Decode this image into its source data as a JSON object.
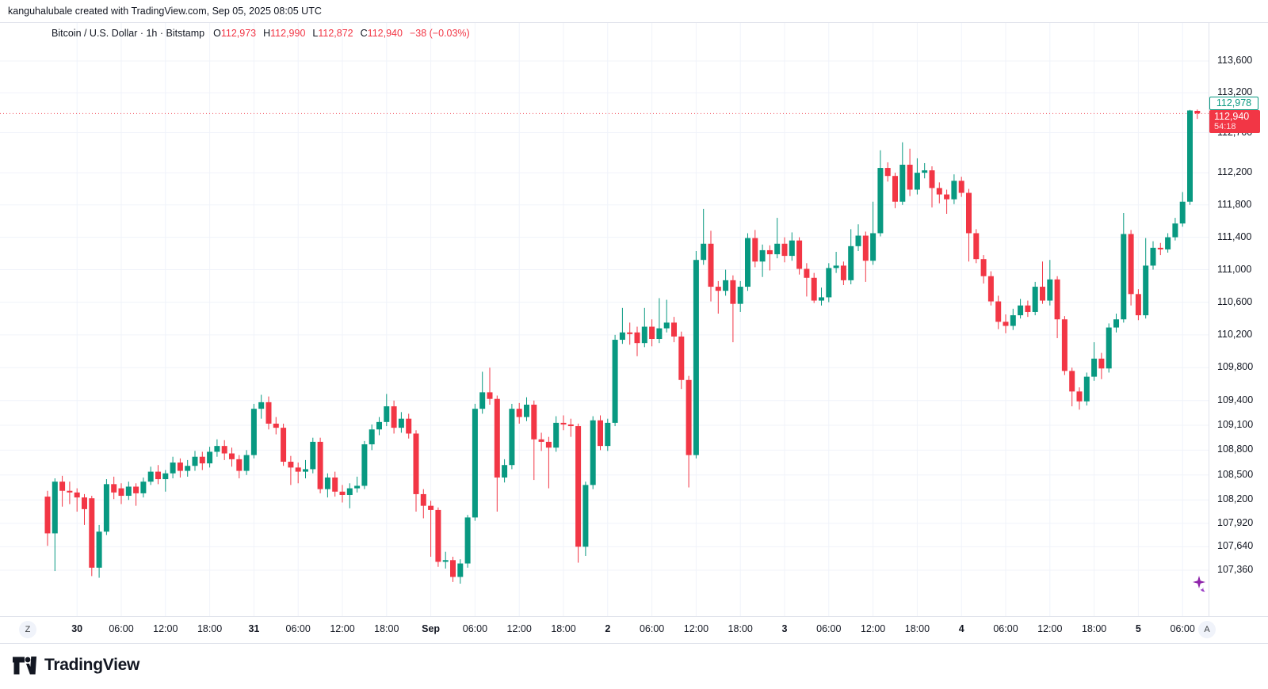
{
  "attribution": "kanguhalubale created with TradingView.com, Sep 05, 2025 08:05 UTC",
  "legend": {
    "title": "Bitcoin / U.S. Dollar · 1h · Bitstamp",
    "o_label": "O",
    "o_value": "112,973",
    "h_label": "H",
    "h_value": "112,990",
    "l_label": "L",
    "l_value": "112,872",
    "c_label": "C",
    "c_value": "112,940",
    "change": "−38 (−0.03%)"
  },
  "currency_button": "USD",
  "price_labels": {
    "counter": "112,978",
    "last_price": "112,940",
    "countdown": "54:18"
  },
  "time_axis": {
    "left_badge": "Z",
    "right_badge": "A"
  },
  "footer": {
    "brand": "TradingView"
  },
  "colors": {
    "up": "#089981",
    "down": "#f23645",
    "text": "#131722",
    "grid": "#f0f3fa",
    "border": "#e0e3eb",
    "price_line": "#f23645",
    "counter_label": "#089981",
    "cursor": "#8e24aa"
  },
  "chart_data": {
    "type": "candlestick",
    "title": "Bitcoin / U.S. Dollar",
    "exchange": "Bitstamp",
    "timeframe": "1h",
    "quote_currency": "USD",
    "current_ohlc": {
      "open": 112973,
      "high": 112990,
      "low": 112872,
      "close": 112940
    },
    "change_text": "−38 (−0.03%)",
    "price_line_value": 112940,
    "counter_line_value": 112978,
    "scale": "log",
    "price_axis_ticks": [
      {
        "label": "113,600",
        "value": 113600
      },
      {
        "label": "113,200",
        "value": 113200
      },
      {
        "label": "112,700",
        "value": 112700
      },
      {
        "label": "112,200",
        "value": 112200
      },
      {
        "label": "111,800",
        "value": 111800
      },
      {
        "label": "111,400",
        "value": 111400
      },
      {
        "label": "111,000",
        "value": 111000
      },
      {
        "label": "110,600",
        "value": 110600
      },
      {
        "label": "110,200",
        "value": 110200
      },
      {
        "label": "109,800",
        "value": 109800
      },
      {
        "label": "109,400",
        "value": 109400
      },
      {
        "label": "109,100",
        "value": 109100
      },
      {
        "label": "108,800",
        "value": 108800
      },
      {
        "label": "108,500",
        "value": 108500
      },
      {
        "label": "108,200",
        "value": 108200
      },
      {
        "label": "107,920",
        "value": 107920
      },
      {
        "label": "107,640",
        "value": 107640
      },
      {
        "label": "107,360",
        "value": 107360
      }
    ],
    "time_ticks": [
      {
        "i": 4,
        "label": "30",
        "day": true
      },
      {
        "i": 10,
        "label": "06:00"
      },
      {
        "i": 16,
        "label": "12:00"
      },
      {
        "i": 22,
        "label": "18:00"
      },
      {
        "i": 28,
        "label": "31",
        "day": true
      },
      {
        "i": 34,
        "label": "06:00"
      },
      {
        "i": 40,
        "label": "12:00"
      },
      {
        "i": 46,
        "label": "18:00"
      },
      {
        "i": 52,
        "label": "Sep",
        "day": true
      },
      {
        "i": 58,
        "label": "06:00"
      },
      {
        "i": 64,
        "label": "12:00"
      },
      {
        "i": 70,
        "label": "18:00"
      },
      {
        "i": 76,
        "label": "2",
        "day": true
      },
      {
        "i": 82,
        "label": "06:00"
      },
      {
        "i": 88,
        "label": "12:00"
      },
      {
        "i": 94,
        "label": "18:00"
      },
      {
        "i": 100,
        "label": "3",
        "day": true
      },
      {
        "i": 106,
        "label": "06:00"
      },
      {
        "i": 112,
        "label": "12:00"
      },
      {
        "i": 118,
        "label": "18:00"
      },
      {
        "i": 124,
        "label": "4",
        "day": true
      },
      {
        "i": 130,
        "label": "06:00"
      },
      {
        "i": 136,
        "label": "12:00"
      },
      {
        "i": 142,
        "label": "18:00"
      },
      {
        "i": 148,
        "label": "5",
        "day": true
      },
      {
        "i": 154,
        "label": "06:00"
      }
    ],
    "first_bar_time": "Aug 29 20:00 UTC",
    "last_bar_time": "Sep 05 08:00 UTC",
    "candles_ohlc": [
      [
        108240,
        108310,
        107650,
        107800
      ],
      [
        107800,
        108460,
        107350,
        108420
      ],
      [
        108420,
        108490,
        108120,
        108310
      ],
      [
        108310,
        108420,
        108150,
        108290
      ],
      [
        108290,
        108340,
        108060,
        108230
      ],
      [
        108230,
        108270,
        107900,
        108090
      ],
      [
        108220,
        108250,
        107290,
        107390
      ],
      [
        107390,
        107900,
        107270,
        107820
      ],
      [
        107820,
        108450,
        107780,
        108390
      ],
      [
        108390,
        108480,
        108210,
        108290
      ],
      [
        108340,
        108400,
        108150,
        108250
      ],
      [
        108250,
        108420,
        108200,
        108360
      ],
      [
        108360,
        108400,
        108130,
        108280
      ],
      [
        108280,
        108470,
        108230,
        108420
      ],
      [
        108420,
        108600,
        108380,
        108540
      ],
      [
        108540,
        108620,
        108390,
        108450
      ],
      [
        108450,
        108560,
        108300,
        108520
      ],
      [
        108520,
        108720,
        108460,
        108650
      ],
      [
        108650,
        108700,
        108470,
        108550
      ],
      [
        108550,
        108680,
        108480,
        108610
      ],
      [
        108610,
        108790,
        108550,
        108720
      ],
      [
        108720,
        108780,
        108560,
        108640
      ],
      [
        108640,
        108840,
        108590,
        108780
      ],
      [
        108780,
        108930,
        108720,
        108850
      ],
      [
        108850,
        108920,
        108680,
        108760
      ],
      [
        108760,
        108830,
        108600,
        108690
      ],
      [
        108690,
        108740,
        108460,
        108550
      ],
      [
        108550,
        108800,
        108500,
        108740
      ],
      [
        108740,
        109360,
        108700,
        109300
      ],
      [
        109300,
        109470,
        109180,
        109380
      ],
      [
        109380,
        109450,
        109050,
        109120
      ],
      [
        109120,
        109200,
        108990,
        109070
      ],
      [
        109070,
        109120,
        108610,
        108660
      ],
      [
        108660,
        108730,
        108380,
        108590
      ],
      [
        108590,
        108650,
        108400,
        108540
      ],
      [
        108540,
        108680,
        108460,
        108570
      ],
      [
        108570,
        108950,
        108520,
        108900
      ],
      [
        108900,
        108950,
        108280,
        108330
      ],
      [
        108330,
        108520,
        108230,
        108470
      ],
      [
        108470,
        108540,
        108240,
        108300
      ],
      [
        108300,
        108380,
        108170,
        108260
      ],
      [
        108260,
        108400,
        108100,
        108340
      ],
      [
        108340,
        108480,
        108290,
        108370
      ],
      [
        108370,
        108910,
        108330,
        108870
      ],
      [
        108870,
        109110,
        108800,
        109050
      ],
      [
        109050,
        109200,
        108980,
        109140
      ],
      [
        109140,
        109480,
        109090,
        109330
      ],
      [
        109330,
        109400,
        109000,
        109070
      ],
      [
        109070,
        109260,
        109010,
        109180
      ],
      [
        109180,
        109240,
        108940,
        109000
      ],
      [
        109000,
        109040,
        108060,
        108270
      ],
      [
        108270,
        108330,
        107980,
        108130
      ],
      [
        108130,
        108190,
        107520,
        108080
      ],
      [
        108080,
        108110,
        107400,
        107460
      ],
      [
        107460,
        107580,
        107380,
        107480
      ],
      [
        107480,
        107520,
        107220,
        107280
      ],
      [
        107280,
        107490,
        107200,
        107440
      ],
      [
        107440,
        108020,
        107390,
        107990
      ],
      [
        107990,
        109360,
        107950,
        109300
      ],
      [
        109300,
        109750,
        109240,
        109500
      ],
      [
        109500,
        109800,
        109350,
        109420
      ],
      [
        109420,
        109460,
        108060,
        108470
      ],
      [
        108470,
        108690,
        108410,
        108620
      ],
      [
        108620,
        109360,
        108570,
        109300
      ],
      [
        109300,
        109370,
        109120,
        109200
      ],
      [
        109200,
        109440,
        109150,
        109350
      ],
      [
        109350,
        109400,
        108440,
        108930
      ],
      [
        108930,
        109010,
        108790,
        108900
      ],
      [
        108900,
        108960,
        108340,
        108830
      ],
      [
        108830,
        109210,
        108780,
        109130
      ],
      [
        109130,
        109220,
        109040,
        109110
      ],
      [
        109110,
        109180,
        108960,
        109090
      ],
      [
        109090,
        109120,
        107450,
        107640
      ],
      [
        107640,
        108420,
        107530,
        108380
      ],
      [
        108380,
        109210,
        108330,
        109160
      ],
      [
        109160,
        109220,
        108800,
        108850
      ],
      [
        108850,
        109180,
        108790,
        109130
      ],
      [
        109130,
        110200,
        109090,
        110140
      ],
      [
        110140,
        110530,
        110090,
        110230
      ],
      [
        110230,
        110350,
        110080,
        110210
      ],
      [
        110230,
        110300,
        109940,
        110100
      ],
      [
        110100,
        110530,
        110050,
        110300
      ],
      [
        110300,
        110390,
        110060,
        110150
      ],
      [
        110150,
        110650,
        110100,
        110280
      ],
      [
        110280,
        110630,
        110230,
        110350
      ],
      [
        110350,
        110420,
        110110,
        110180
      ],
      [
        110180,
        110240,
        109540,
        109650
      ],
      [
        109650,
        109700,
        108350,
        108740
      ],
      [
        108740,
        111230,
        108700,
        111120
      ],
      [
        111120,
        111750,
        111060,
        111320
      ],
      [
        111320,
        111480,
        110610,
        110790
      ],
      [
        110790,
        110860,
        110460,
        110740
      ],
      [
        110740,
        111000,
        110680,
        110870
      ],
      [
        110870,
        110930,
        110110,
        110580
      ],
      [
        110580,
        110860,
        110480,
        110790
      ],
      [
        110790,
        111450,
        110740,
        111390
      ],
      [
        111390,
        111490,
        111030,
        111100
      ],
      [
        111100,
        111310,
        110910,
        111240
      ],
      [
        111240,
        111300,
        110990,
        111190
      ],
      [
        111190,
        111640,
        111140,
        111320
      ],
      [
        111320,
        111400,
        111090,
        111170
      ],
      [
        111170,
        111460,
        111110,
        111360
      ],
      [
        111360,
        111400,
        110940,
        111010
      ],
      [
        111010,
        111080,
        110670,
        110900
      ],
      [
        110900,
        110960,
        110590,
        110620
      ],
      [
        110620,
        110780,
        110560,
        110660
      ],
      [
        110660,
        111080,
        110600,
        111020
      ],
      [
        111020,
        111220,
        110960,
        111050
      ],
      [
        111050,
        111100,
        110810,
        110870
      ],
      [
        110870,
        111500,
        110820,
        111290
      ],
      [
        111290,
        111560,
        111230,
        111420
      ],
      [
        111420,
        111470,
        110850,
        111110
      ],
      [
        111110,
        111840,
        111060,
        111450
      ],
      [
        111450,
        112480,
        111410,
        112260
      ],
      [
        112260,
        112330,
        112090,
        112160
      ],
      [
        112160,
        112200,
        111760,
        111840
      ],
      [
        111840,
        112580,
        111800,
        112300
      ],
      [
        112300,
        112500,
        111910,
        111990
      ],
      [
        111990,
        112380,
        111930,
        112200
      ],
      [
        112200,
        112320,
        112130,
        112230
      ],
      [
        112230,
        112280,
        111770,
        112010
      ],
      [
        112010,
        112080,
        111820,
        111930
      ],
      [
        111930,
        111990,
        111690,
        111870
      ],
      [
        111870,
        112180,
        111810,
        112100
      ],
      [
        112100,
        112150,
        111900,
        111950
      ],
      [
        111950,
        112000,
        111100,
        111450
      ],
      [
        111450,
        111500,
        111080,
        111130
      ],
      [
        111130,
        111180,
        110830,
        110920
      ],
      [
        110920,
        110980,
        110560,
        110610
      ],
      [
        110610,
        110680,
        110270,
        110360
      ],
      [
        110360,
        110450,
        110220,
        110310
      ],
      [
        110310,
        110520,
        110260,
        110440
      ],
      [
        110440,
        110640,
        110400,
        110560
      ],
      [
        110560,
        110620,
        110420,
        110480
      ],
      [
        110480,
        110850,
        110440,
        110790
      ],
      [
        110790,
        111100,
        110580,
        110620
      ],
      [
        110620,
        111120,
        110560,
        110880
      ],
      [
        110880,
        110920,
        110160,
        110390
      ],
      [
        110390,
        110430,
        109710,
        109760
      ],
      [
        109760,
        109800,
        109330,
        109510
      ],
      [
        109510,
        109560,
        109290,
        109390
      ],
      [
        109390,
        109740,
        109340,
        109690
      ],
      [
        109690,
        110110,
        109640,
        109910
      ],
      [
        109910,
        109980,
        109660,
        109790
      ],
      [
        109790,
        110340,
        109740,
        110290
      ],
      [
        110290,
        110460,
        110230,
        110390
      ],
      [
        110390,
        111700,
        110350,
        111440
      ],
      [
        111440,
        111490,
        110560,
        110700
      ],
      [
        110700,
        110760,
        110380,
        110440
      ],
      [
        110440,
        111390,
        110400,
        111050
      ],
      [
        111050,
        111350,
        111000,
        111270
      ],
      [
        111270,
        111330,
        111180,
        111250
      ],
      [
        111250,
        111450,
        111210,
        111400
      ],
      [
        111400,
        111640,
        111360,
        111570
      ],
      [
        111570,
        111960,
        111530,
        111840
      ],
      [
        111840,
        112985,
        111800,
        112978
      ],
      [
        112973,
        112990,
        112872,
        112940
      ]
    ]
  }
}
